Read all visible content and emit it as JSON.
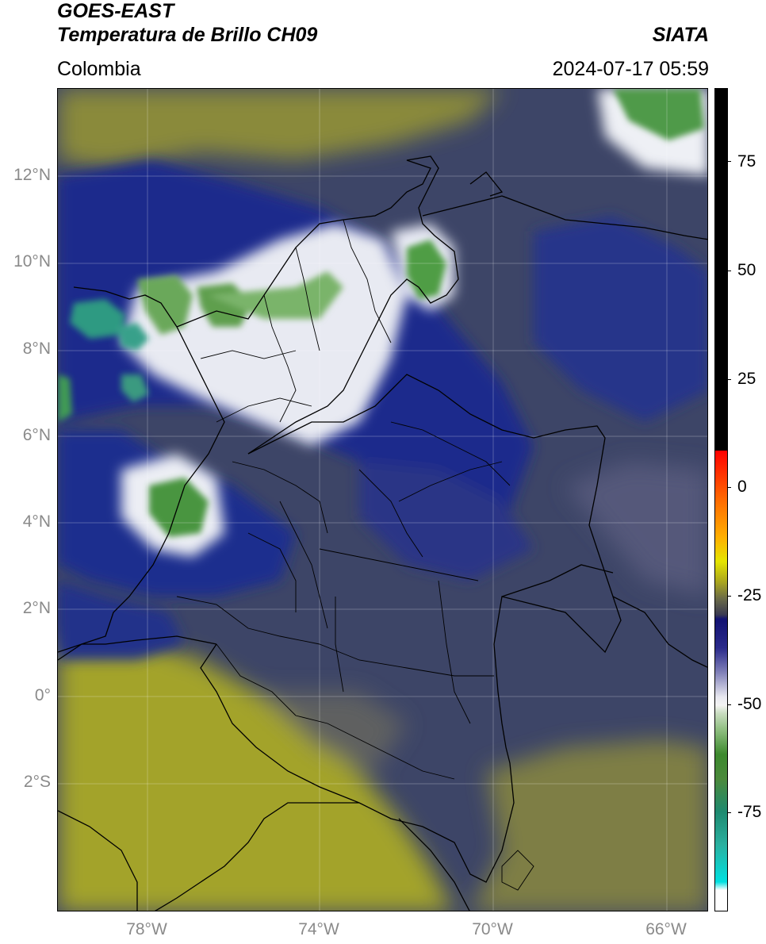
{
  "header": {
    "title_line1": "GOES-EAST",
    "title_line2": "Temperatura de Brillo CH09",
    "subtitle": "Colombia",
    "brand": "SIATA",
    "datetime": "2024-07-17 05:59"
  },
  "map": {
    "lat_labels": [
      "12°N",
      "10°N",
      "8°N",
      "6°N",
      "4°N",
      "2°N",
      "0°",
      "2°S"
    ],
    "lon_labels": [
      "78°W",
      "74°W",
      "70°W",
      "66°W"
    ],
    "colors": {
      "background_warm": "#3b4367",
      "dry_olive": "#9a9a2e",
      "deep_blue": "#1c2a8a",
      "cold_white": "#f2f2f2",
      "cold_green": "#4f9a3c",
      "coldest_teal": "#2aa08a",
      "border_line": "#000000"
    }
  },
  "colorbar": {
    "tick_labels": [
      "75",
      "50",
      "25",
      "0",
      "-25",
      "-50",
      "-75"
    ],
    "colors": [
      "#ffffff",
      "#00e5e5",
      "#1e8a6e",
      "#3c8a2c",
      "#f4f4f4",
      "#1a1a7a",
      "#3b3b4b",
      "#b5b51a",
      "#e5e500",
      "#ff8c00",
      "#ff0000",
      "#000000"
    ]
  }
}
